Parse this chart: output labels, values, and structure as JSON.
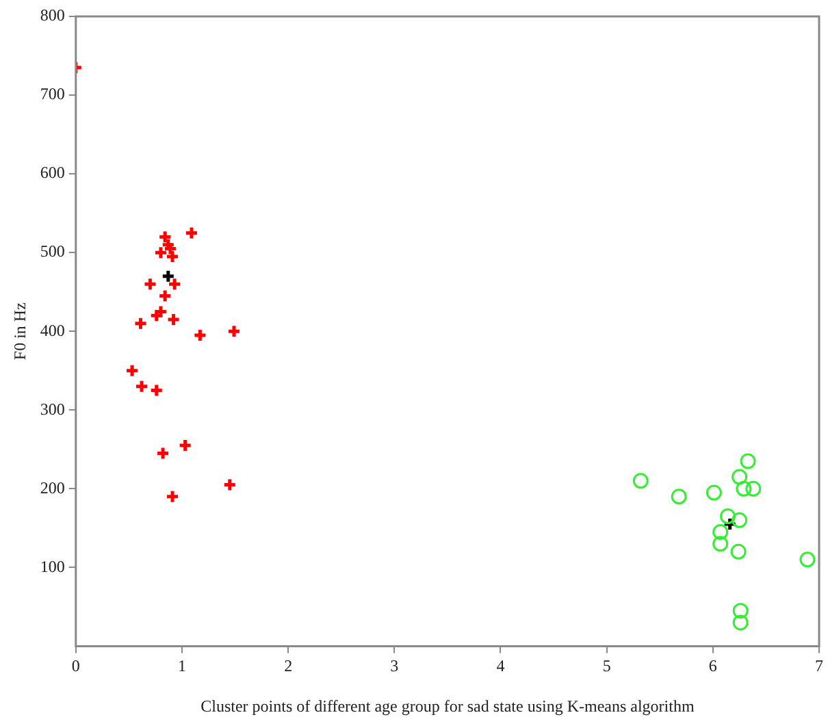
{
  "chart_data": {
    "type": "scatter",
    "xlabel": "Cluster points of different age group for sad state using K-means algorithm",
    "ylabel": "F0 in Hz",
    "xlim": [
      0,
      7
    ],
    "xticks": [
      0,
      1,
      2,
      3,
      4,
      5,
      6,
      7
    ],
    "ylim": [
      0,
      800
    ],
    "yticks": [
      100,
      200,
      300,
      400,
      500,
      600,
      700,
      800
    ],
    "grid": false,
    "legend": false,
    "series": [
      {
        "color": "#ff0000",
        "marker": "cross",
        "x": [
          0,
          1.09,
          0.87,
          0.84,
          0.89,
          0.91,
          0.8,
          0.93,
          0.7,
          0.84,
          0.8,
          0.76,
          0.92,
          0.61,
          1.17,
          1.49,
          0.53,
          0.62,
          0.76,
          1.03,
          0.82,
          1.45,
          0.91
        ],
        "values": [
          735,
          525,
          510,
          520,
          505,
          495,
          500,
          460,
          460,
          445,
          425,
          420,
          415,
          410,
          395,
          400,
          350,
          330,
          325,
          255,
          245,
          205,
          190
        ]
      },
      {
        "color": "#33ee33",
        "marker": "circle",
        "x": [
          5.32,
          5.68,
          6.01,
          6.33,
          6.25,
          6.29,
          6.38,
          6.14,
          6.25,
          6.07,
          6.07,
          6.24,
          6.89,
          6.26,
          6.26
        ],
        "values": [
          210,
          190,
          195,
          235,
          215,
          200,
          200,
          165,
          160,
          145,
          130,
          120,
          110,
          45,
          30
        ]
      },
      {
        "color": "#000000",
        "marker": "cross",
        "x": [
          0.87,
          6.16
        ],
        "values": [
          470,
          155
        ]
      }
    ]
  }
}
